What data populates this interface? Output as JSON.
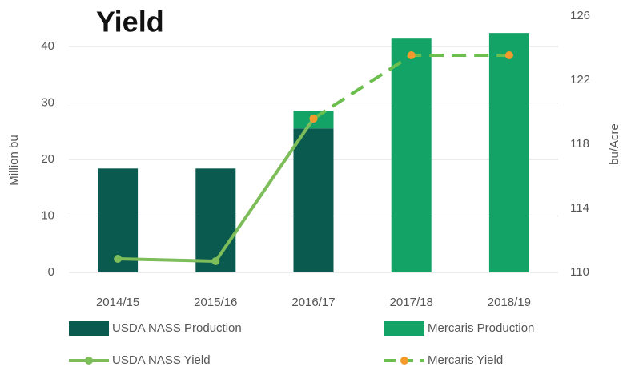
{
  "chart_data": {
    "type": "bar",
    "title": "Yield",
    "ylabel": "Million bu",
    "y2label": "bu/Acre",
    "categories": [
      "2014/15",
      "2015/16",
      "2016/17",
      "2017/18",
      "2018/19"
    ],
    "series": [
      {
        "name": "USDA NASS Production",
        "type": "bar",
        "color": "#0b5a50",
        "values": [
          18.4,
          18.4,
          25.5,
          null,
          null
        ]
      },
      {
        "name": "Mercaris Production",
        "type": "bar",
        "color": "#14a366",
        "values": [
          null,
          null,
          3.1,
          41.4,
          42.4
        ]
      },
      {
        "name": "USDA NASS Yield",
        "type": "line",
        "axis": "y2",
        "color": "#7dbd5a",
        "marker": "#7dbd5a",
        "dashed": false,
        "values": [
          110.85,
          110.7,
          119.6,
          null,
          null
        ]
      },
      {
        "name": "Mercaris Yield",
        "type": "line",
        "axis": "y2",
        "color": "#6cbf4f",
        "marker": "#f39a2c",
        "dashed": true,
        "values": [
          null,
          null,
          119.6,
          123.55,
          123.55
        ]
      }
    ],
    "ylim": [
      0,
      45.4
    ],
    "yticks": [
      0,
      10,
      20,
      30,
      40
    ],
    "y2lim": [
      110,
      126
    ],
    "y2ticks": [
      110,
      114,
      118,
      122,
      126
    ],
    "grid": true,
    "stacked": true,
    "legend": "bottom"
  }
}
